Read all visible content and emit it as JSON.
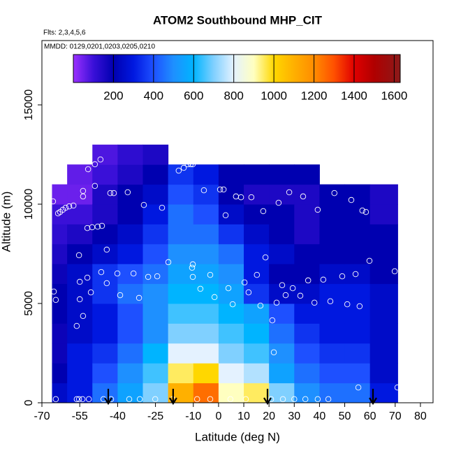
{
  "chart_data": {
    "type": "curtain",
    "title": "ATOM2 Southbound MHP_CIT",
    "flights_label": "Flts: 2,3,4,5,6",
    "dates_label": "MMDD: 0129,0201,0203,0205,0210",
    "xlabel": "Latitude (deg N)",
    "ylabel": "Altitude (m)",
    "xlim": [
      -70,
      85
    ],
    "ylim": [
      0,
      18240
    ],
    "xticks": [
      -70,
      -55,
      -40,
      -25,
      -10,
      0,
      10,
      20,
      30,
      40,
      50,
      60,
      70,
      80
    ],
    "yticks": [
      0,
      5000,
      10000,
      15000
    ],
    "colorbar_lim": [
      0,
      1630
    ],
    "colorbar_ticks": [
      200,
      400,
      600,
      800,
      1000,
      1200,
      1400,
      1600
    ],
    "colorscale": [
      [
        0,
        "#9b30ff"
      ],
      [
        100,
        "#3a10d8"
      ],
      [
        200,
        "#0000b0"
      ],
      [
        300,
        "#0018e0"
      ],
      [
        400,
        "#1e50ff"
      ],
      [
        500,
        "#1e90ff"
      ],
      [
        600,
        "#00b4ff"
      ],
      [
        700,
        "#80d0ff"
      ],
      [
        800,
        "#e4f2ff"
      ],
      [
        900,
        "#ffffc0"
      ],
      [
        1000,
        "#ffd700"
      ],
      [
        1100,
        "#ffb000"
      ],
      [
        1200,
        "#ff8c00"
      ],
      [
        1300,
        "#ff5000"
      ],
      [
        1400,
        "#e00000"
      ],
      [
        1500,
        "#b00000"
      ],
      [
        1630,
        "#8b1a1a"
      ]
    ],
    "grid": {
      "lat_edges": [
        -66,
        -60,
        -50,
        -40,
        -30,
        -20,
        -10,
        0,
        10,
        20,
        30,
        40,
        50,
        60,
        71
      ],
      "alt_edges": [
        0,
        1000,
        2000,
        3000,
        4000,
        5000,
        6000,
        7000,
        8000,
        9000,
        10000,
        11000,
        12000,
        13000
      ],
      "values": [
        [
          250,
          200,
          180,
          180,
          200,
          200,
          180,
          150,
          120,
          100,
          50,
          null,
          null
        ],
        [
          300,
          300,
          300,
          250,
          250,
          250,
          250,
          200,
          150,
          100,
          50,
          60,
          null
        ],
        [
          450,
          400,
          350,
          300,
          300,
          350,
          350,
          250,
          200,
          150,
          150,
          100,
          80
        ],
        [
          550,
          500,
          450,
          400,
          400,
          450,
          400,
          300,
          250,
          200,
          200,
          150,
          120
        ],
        [
          700,
          650,
          600,
          500,
          500,
          500,
          450,
          400,
          350,
          300,
          250,
          200,
          150
        ],
        [
          1100,
          950,
          800,
          700,
          650,
          600,
          550,
          500,
          450,
          450,
          400,
          350,
          null
        ],
        [
          1250,
          1000,
          800,
          700,
          650,
          600,
          550,
          500,
          450,
          400,
          350,
          300,
          null
        ],
        [
          900,
          800,
          700,
          650,
          600,
          550,
          500,
          450,
          350,
          250,
          200,
          200,
          null
        ],
        [
          950,
          750,
          650,
          600,
          550,
          350,
          300,
          300,
          250,
          200,
          150,
          200,
          null
        ],
        [
          700,
          550,
          500,
          450,
          400,
          250,
          200,
          250,
          200,
          200,
          150,
          200,
          null
        ],
        [
          500,
          450,
          400,
          350,
          300,
          250,
          200,
          200,
          150,
          150,
          150,
          200,
          null
        ],
        [
          450,
          400,
          350,
          300,
          300,
          300,
          250,
          200,
          200,
          200,
          200,
          null,
          null
        ],
        [
          450,
          400,
          350,
          300,
          300,
          300,
          250,
          200,
          200,
          200,
          200,
          null,
          null
        ],
        [
          300,
          250,
          250,
          250,
          250,
          250,
          200,
          200,
          200,
          150,
          150,
          null,
          null
        ]
      ]
    },
    "points": {
      "lat": [
        -65.6,
        -63.6,
        -62.8,
        -61.7,
        -60.6,
        -59.2,
        -57.5,
        -53.7,
        -53.7,
        -51.7,
        -49,
        -46.8,
        -49,
        -42.9,
        -41.5,
        -36,
        -29.6,
        -22.4,
        -52,
        -50.1,
        -47.9,
        -46.2,
        -44.3,
        -55.3,
        -19.9,
        -46.5,
        -40.1,
        -33.7,
        -27.9,
        -24.3,
        -55,
        -52,
        -44.3,
        -50.6,
        -39,
        -31.5,
        -55,
        -53.7,
        -56.2,
        -65.3,
        -64.5,
        -15.8,
        -13.8,
        -12.2,
        -11,
        -10.2,
        -5.8,
        0.6,
        2,
        2.8,
        6.9,
        8.9,
        13,
        17.7,
        23.8,
        28,
        33.5,
        39.3,
        45.9,
        52.6,
        57,
        58.4,
        67.8,
        18.6,
        59.8,
        -10.5,
        -10.2,
        -10.2,
        -3.3,
        -7.2,
        3.9,
        10.3,
        11.9,
        15.2,
        5.6,
        16.6,
        21.3,
        21.9,
        23,
        25.2,
        26.6,
        29.4,
        32.4,
        35.5,
        38,
        41.5,
        44.3,
        49,
        51,
        54.3,
        55.9,
        69.8,
        -1.6,
        55.4,
        70.9,
        -64.5,
        -56.2,
        -55.3,
        -53.9,
        -51.4,
        -45.6,
        -42.6,
        -35.4,
        -31.2,
        -25.1,
        -18.2,
        -8.5,
        -3.3,
        4.7,
        10.8,
        20.8,
        25.5,
        30,
        34.4,
        39.3,
        43.5
      ],
      "alt": [
        10140,
        9540,
        9610,
        9720,
        9820,
        9890,
        9930,
        10670,
        10390,
        11760,
        12010,
        12250,
        10920,
        10560,
        10560,
        10600,
        9960,
        9820,
        8800,
        8840,
        8870,
        8910,
        7710,
        7430,
        7080,
        6580,
        6510,
        6510,
        6340,
        6370,
        6090,
        6300,
        6020,
        5560,
        5420,
        5280,
        5210,
        4370,
        3870,
        5600,
        5180,
        11690,
        11830,
        12010,
        12010,
        12010,
        10700,
        10740,
        10740,
        9440,
        10390,
        10350,
        10350,
        9650,
        10070,
        10600,
        10390,
        9720,
        10560,
        10210,
        9680,
        9610,
        11270,
        7320,
        7150,
        6800,
        6970,
        6340,
        6440,
        5740,
        5770,
        6060,
        5560,
        6440,
        4960,
        4890,
        4150,
        2540,
        5040,
        5920,
        5420,
        5770,
        5390,
        6160,
        5040,
        6200,
        5110,
        6370,
        4960,
        6480,
        4860,
        6620,
        5320,
        770,
        770,
        180,
        180,
        180,
        180,
        180,
        180,
        180,
        180,
        180,
        180,
        180,
        180,
        180,
        180,
        180,
        180,
        180,
        180,
        180,
        180,
        180
      ]
    },
    "arrow_lats": [
      -43.7,
      -18,
      19.4,
      61.2
    ]
  }
}
